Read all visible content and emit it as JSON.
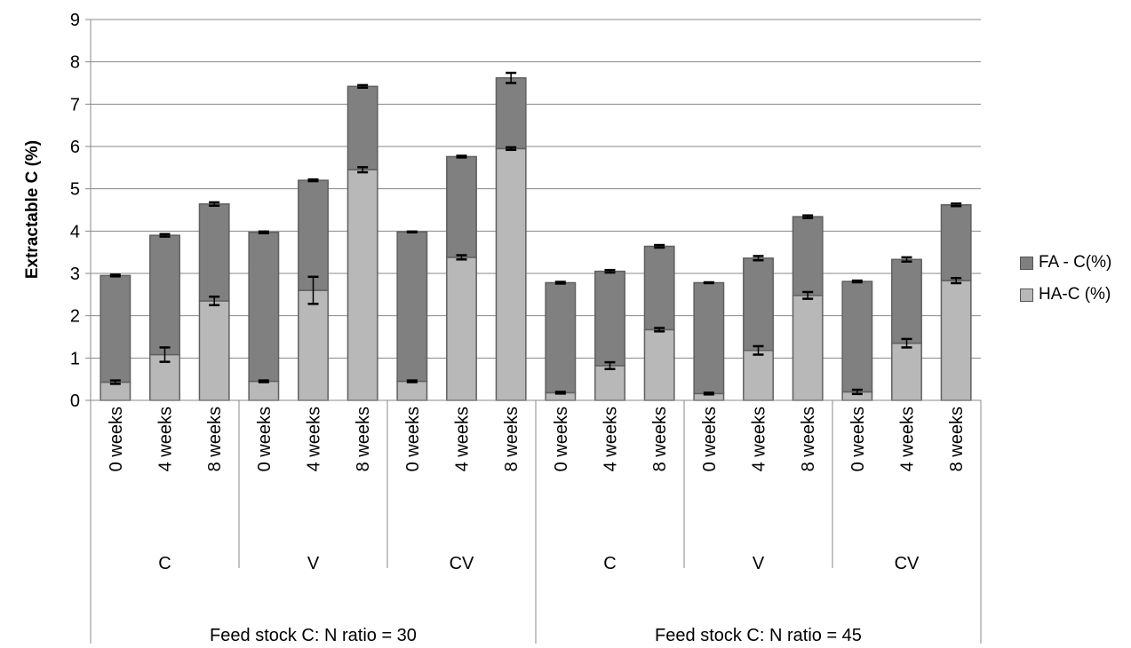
{
  "chart_data": {
    "type": "bar",
    "stacked": true,
    "ylabel": "Extractable C (%)",
    "ylim": [
      0,
      9
    ],
    "yticks": [
      "0",
      "1",
      "2",
      "3",
      "4",
      "5",
      "6",
      "7",
      "8",
      "9"
    ],
    "grid": true,
    "legend_position": "right",
    "groups": [
      {
        "label": "Feed stock C: N ratio = 30",
        "subgroups": [
          {
            "label": "C",
            "categories": [
              "0 weeks",
              "4 weeks",
              "8 weeks"
            ]
          },
          {
            "label": "V",
            "categories": [
              "0 weeks",
              "4 weeks",
              "8 weeks"
            ]
          },
          {
            "label": "CV",
            "categories": [
              "0 weeks",
              "4 weeks",
              "8 weeks"
            ]
          }
        ]
      },
      {
        "label": "Feed stock C: N ratio = 45",
        "subgroups": [
          {
            "label": "C",
            "categories": [
              "0 weeks",
              "4 weeks",
              "8 weeks"
            ]
          },
          {
            "label": "V",
            "categories": [
              "0 weeks",
              "4 weeks",
              "8 weeks"
            ]
          },
          {
            "label": "CV",
            "categories": [
              "0 weeks",
              "4 weeks",
              "8 weeks"
            ]
          }
        ]
      }
    ],
    "series": [
      {
        "name": "HA-C (%)",
        "color": "#b8b8b8",
        "values": [
          0.43,
          1.08,
          2.35,
          0.45,
          2.6,
          5.45,
          0.45,
          3.38,
          5.95,
          0.18,
          0.82,
          1.67,
          0.16,
          1.18,
          2.48,
          0.2,
          1.35,
          2.83
        ],
        "errors": [
          0.04,
          0.17,
          0.1,
          0.02,
          0.32,
          0.06,
          0.02,
          0.05,
          0.03,
          0.02,
          0.08,
          0.04,
          0.02,
          0.1,
          0.08,
          0.05,
          0.1,
          0.06
        ]
      },
      {
        "name": "FA - C(%)",
        "color": "#808080",
        "values": [
          2.52,
          2.82,
          2.29,
          3.52,
          2.6,
          1.97,
          3.53,
          2.38,
          1.67,
          2.6,
          2.23,
          1.97,
          2.62,
          2.18,
          1.86,
          2.61,
          1.98,
          1.79
        ],
        "errors": [
          0.02,
          0.03,
          0.04,
          0.02,
          0.02,
          0.03,
          0.01,
          0.02,
          0.12,
          0.02,
          0.03,
          0.03,
          0.01,
          0.05,
          0.03,
          0.02,
          0.05,
          0.03
        ]
      }
    ]
  }
}
